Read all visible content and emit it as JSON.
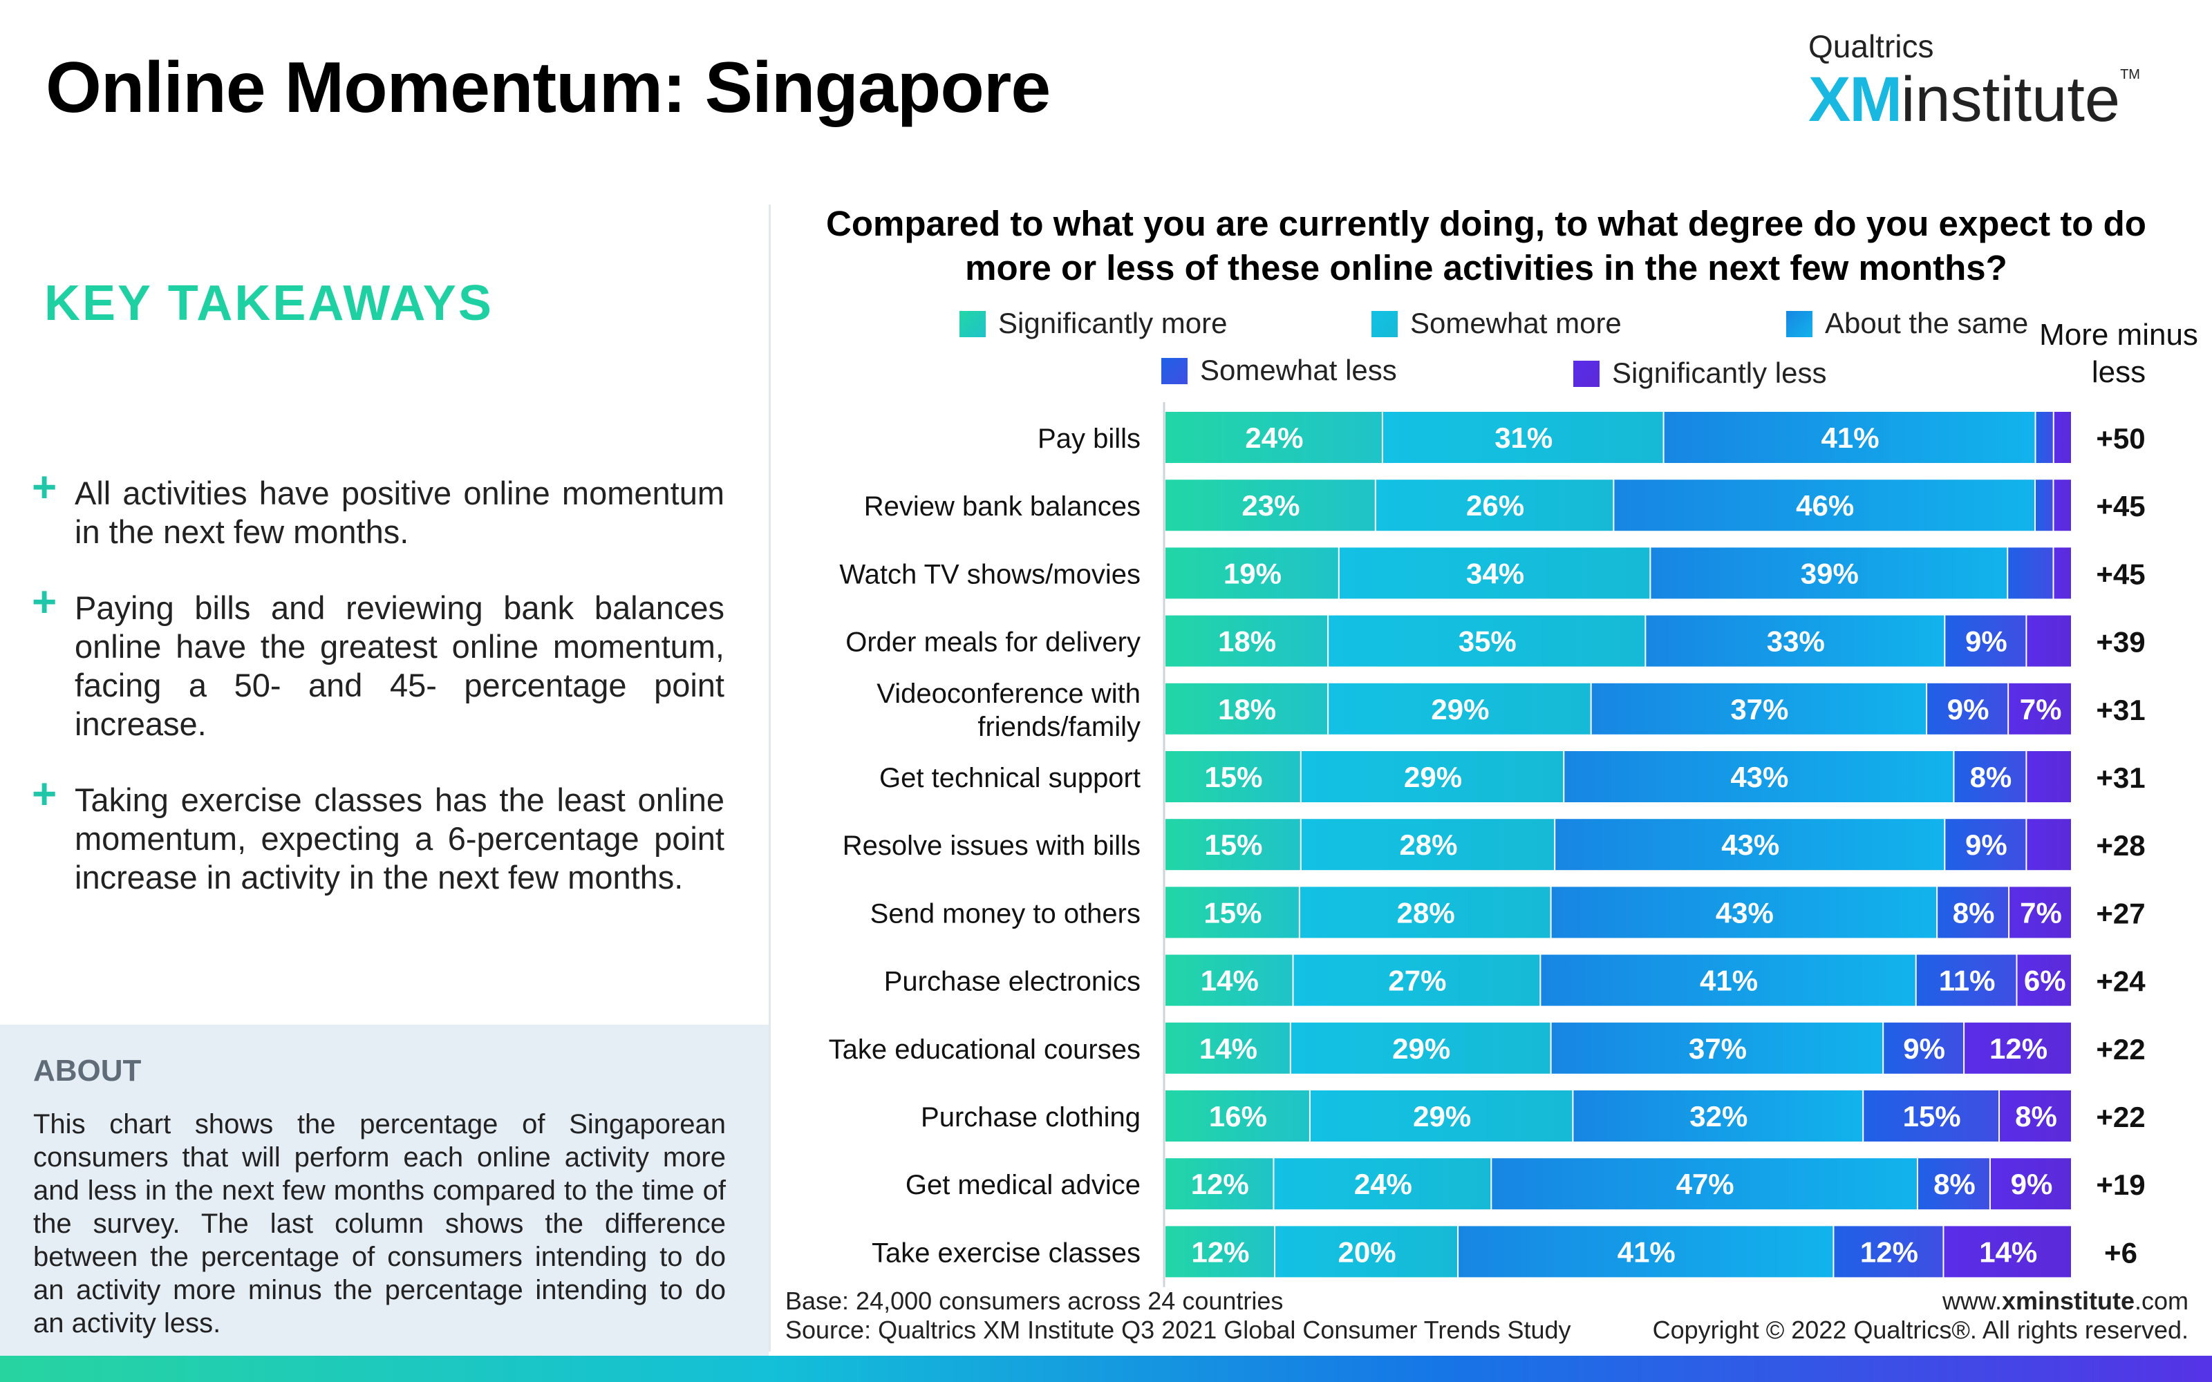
{
  "page": {
    "title": "Online Momentum: Singapore",
    "logo": {
      "brand": "Qualtrics",
      "xm": "XM",
      "institute": "institute",
      "tm": "TM"
    }
  },
  "takeaways": {
    "heading": "KEY TAKEAWAYS",
    "items": [
      "All activities have positive online momentum in the next few months.",
      "Paying bills and reviewing bank balances online have the greatest online momentum, facing a 50- and 45- percentage point increase.",
      "Taking exercise classes has the least online momentum, expecting a 6-percentage point increase in activity in the next few months."
    ],
    "plus_symbol": "+"
  },
  "about": {
    "heading": "ABOUT",
    "text": "This chart shows the percentage of Singaporean consumers that will perform each online activity more and less in the next few months compared to the time of the survey. The last column shows the difference between the percentage of consumers intending to do an activity more minus the percentage intending to do an activity less."
  },
  "footer": {
    "base": "Base: 24,000 consumers across 24 countries",
    "source": "Source: Qualtrics XM Institute Q3 2021 Global Consumer Trends Study",
    "url_prefix": "www.",
    "url_bold": "xminstitute",
    "url_suffix": ".com",
    "copyright": "Copyright © 2022 Qualtrics®. All rights reserved."
  },
  "chart_data": {
    "type": "bar",
    "orientation": "horizontal-stacked-100",
    "title": "Compared to what you are currently doing, to what degree do you expect to do more or less of these online activities in the next few months?",
    "net_header": "More minus less",
    "series": [
      {
        "name": "Significantly more",
        "color": "#22d6a6",
        "color2": "#1fc3c8",
        "values": [
          24,
          23,
          19,
          18,
          18,
          15,
          15,
          15,
          14,
          14,
          16,
          12,
          12
        ]
      },
      {
        "name": "Somewhat more",
        "color": "#13c1e4",
        "color2": "#16bad6",
        "values": [
          31,
          26,
          34,
          35,
          29,
          29,
          28,
          28,
          27,
          29,
          29,
          24,
          20
        ]
      },
      {
        "name": "About the same",
        "color": "#1786e3",
        "color2": "#12b3ec",
        "values": [
          41,
          46,
          39,
          33,
          37,
          43,
          43,
          43,
          41,
          37,
          32,
          47,
          41
        ]
      },
      {
        "name": "Somewhat less",
        "color": "#1f61e6",
        "color2": "#3f4fe4",
        "values": [
          2,
          2,
          5,
          9,
          9,
          8,
          9,
          8,
          11,
          9,
          15,
          8,
          12
        ]
      },
      {
        "name": "Significantly less",
        "color": "#5a2de8",
        "color2": "#5b2ad8",
        "values": [
          2,
          2,
          2,
          5,
          7,
          5,
          5,
          7,
          6,
          12,
          8,
          9,
          14
        ]
      }
    ],
    "categories": [
      "Pay bills",
      "Review bank balances",
      "Watch TV shows/movies",
      "Order meals for delivery",
      "Videoconference with friends/family",
      "Get technical support",
      "Resolve issues with bills",
      "Send money to others",
      "Purchase electronics",
      "Take educational courses",
      "Purchase clothing",
      "Get medical advice",
      "Take exercise classes"
    ],
    "category_lines": [
      [
        "Pay bills"
      ],
      [
        "Review bank balances"
      ],
      [
        "Watch TV shows/movies"
      ],
      [
        "Order meals for delivery"
      ],
      [
        "Videoconference with",
        "friends/family"
      ],
      [
        "Get technical support"
      ],
      [
        "Resolve issues with bills"
      ],
      [
        "Send money to others"
      ],
      [
        "Purchase electronics"
      ],
      [
        "Take educational courses"
      ],
      [
        "Purchase clothing"
      ],
      [
        "Get medical advice"
      ],
      [
        "Take exercise classes"
      ]
    ],
    "net": [
      "+50",
      "+45",
      "+45",
      "+39",
      "+31",
      "+31",
      "+28",
      "+27",
      "+24",
      "+22",
      "+22",
      "+19",
      "+6"
    ],
    "label_min_value": 6,
    "legend_position": "top"
  }
}
